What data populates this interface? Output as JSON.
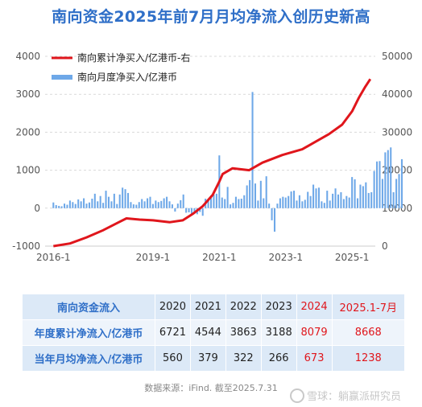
{
  "title": "南向资金2025年前7月月均净流入创历史新高",
  "chart_data": {
    "type": "bar+line",
    "series": [
      {
        "name": "南向累计净买入/亿港币-右",
        "type": "line",
        "axis": "right",
        "color": "#e0161c",
        "points": [
          [
            2016.0,
            0
          ],
          [
            2016.5,
            700
          ],
          [
            2017.0,
            2300
          ],
          [
            2017.5,
            4200
          ],
          [
            2017.95,
            6200
          ],
          [
            2018.2,
            7300
          ],
          [
            2018.6,
            7000
          ],
          [
            2019.0,
            6800
          ],
          [
            2019.5,
            6300
          ],
          [
            2019.9,
            6800
          ],
          [
            2020.2,
            8500
          ],
          [
            2020.5,
            10500
          ],
          [
            2020.8,
            13500
          ],
          [
            2021.0,
            17000
          ],
          [
            2021.1,
            19000
          ],
          [
            2021.4,
            20500
          ],
          [
            2021.9,
            20000
          ],
          [
            2022.3,
            22000
          ],
          [
            2022.9,
            24000
          ],
          [
            2023.5,
            25500
          ],
          [
            2023.9,
            27500
          ],
          [
            2024.3,
            29500
          ],
          [
            2024.7,
            32000
          ],
          [
            2025.0,
            35500
          ],
          [
            2025.2,
            39000
          ],
          [
            2025.4,
            42000
          ],
          [
            2025.55,
            44000
          ]
        ]
      },
      {
        "name": "南向月度净买入/亿港币",
        "type": "bar",
        "axis": "left",
        "color": "#6ea8e8",
        "x_start": 2016.0,
        "x_step_months": 1,
        "values": [
          150,
          80,
          60,
          50,
          120,
          90,
          200,
          160,
          110,
          230,
          180,
          260,
          120,
          150,
          250,
          380,
          180,
          320,
          140,
          460,
          300,
          180,
          380,
          110,
          360,
          540,
          500,
          400,
          160,
          100,
          90,
          160,
          240,
          180,
          260,
          300,
          110,
          200,
          160,
          190,
          260,
          300,
          180,
          100,
          -90,
          120,
          210,
          360,
          -120,
          -110,
          -150,
          -100,
          -160,
          -100,
          -200,
          250,
          220,
          330,
          360,
          380,
          1390,
          280,
          240,
          560,
          100,
          140,
          300,
          240,
          250,
          340,
          600,
          740,
          3060,
          650,
          200,
          720,
          260,
          840,
          120,
          -320,
          -620,
          120,
          260,
          300,
          280,
          320,
          440,
          460,
          200,
          340,
          180,
          220,
          430,
          320,
          620,
          520,
          540,
          180,
          140,
          460,
          200,
          380,
          520,
          360,
          420,
          240,
          320,
          280,
          820,
          760,
          260,
          620,
          580,
          680,
          400,
          420,
          980,
          1230,
          1240,
          770,
          1470,
          1530,
          1600,
          420,
          770,
          900,
          1290
        ]
      }
    ],
    "left_axis": {
      "ticks": [
        "4000",
        "3000",
        "2000",
        "1000",
        "0",
        "-1000"
      ],
      "ylim": [
        -1000,
        4000
      ]
    },
    "right_axis": {
      "ticks": [
        "50000",
        "40000",
        "30000",
        "20000",
        "10000",
        "0"
      ],
      "ylim": [
        0,
        50000
      ]
    },
    "x_axis": {
      "ticks": [
        "2016-1",
        "2019-1",
        "2021-1",
        "2023-1",
        "2025-1"
      ],
      "tick_values": [
        2016.0,
        2019.0,
        2021.0,
        2023.0,
        2025.0
      ],
      "xlim": [
        2015.75,
        2025.7
      ]
    },
    "grid": "horizontal, dashed",
    "legend_position": "top-left"
  },
  "table": {
    "header": [
      "南向资金流入",
      "2020",
      "2021",
      "2022",
      "2023",
      "2024",
      "2025.1-7月"
    ],
    "rows": [
      {
        "label": "年度累计净流入/亿港币",
        "values": [
          "6721",
          "4544",
          "3863",
          "3188",
          "8079",
          "8668"
        ]
      },
      {
        "label": "当年月均净流入/亿港币",
        "values": [
          "560",
          "379",
          "322",
          "266",
          "673",
          "1238"
        ]
      }
    ],
    "highlight_color": "#e0161c"
  },
  "source": "数据来源：iFind. 截至2025.7.31",
  "watermark": "雪球：躺赢派研究员"
}
